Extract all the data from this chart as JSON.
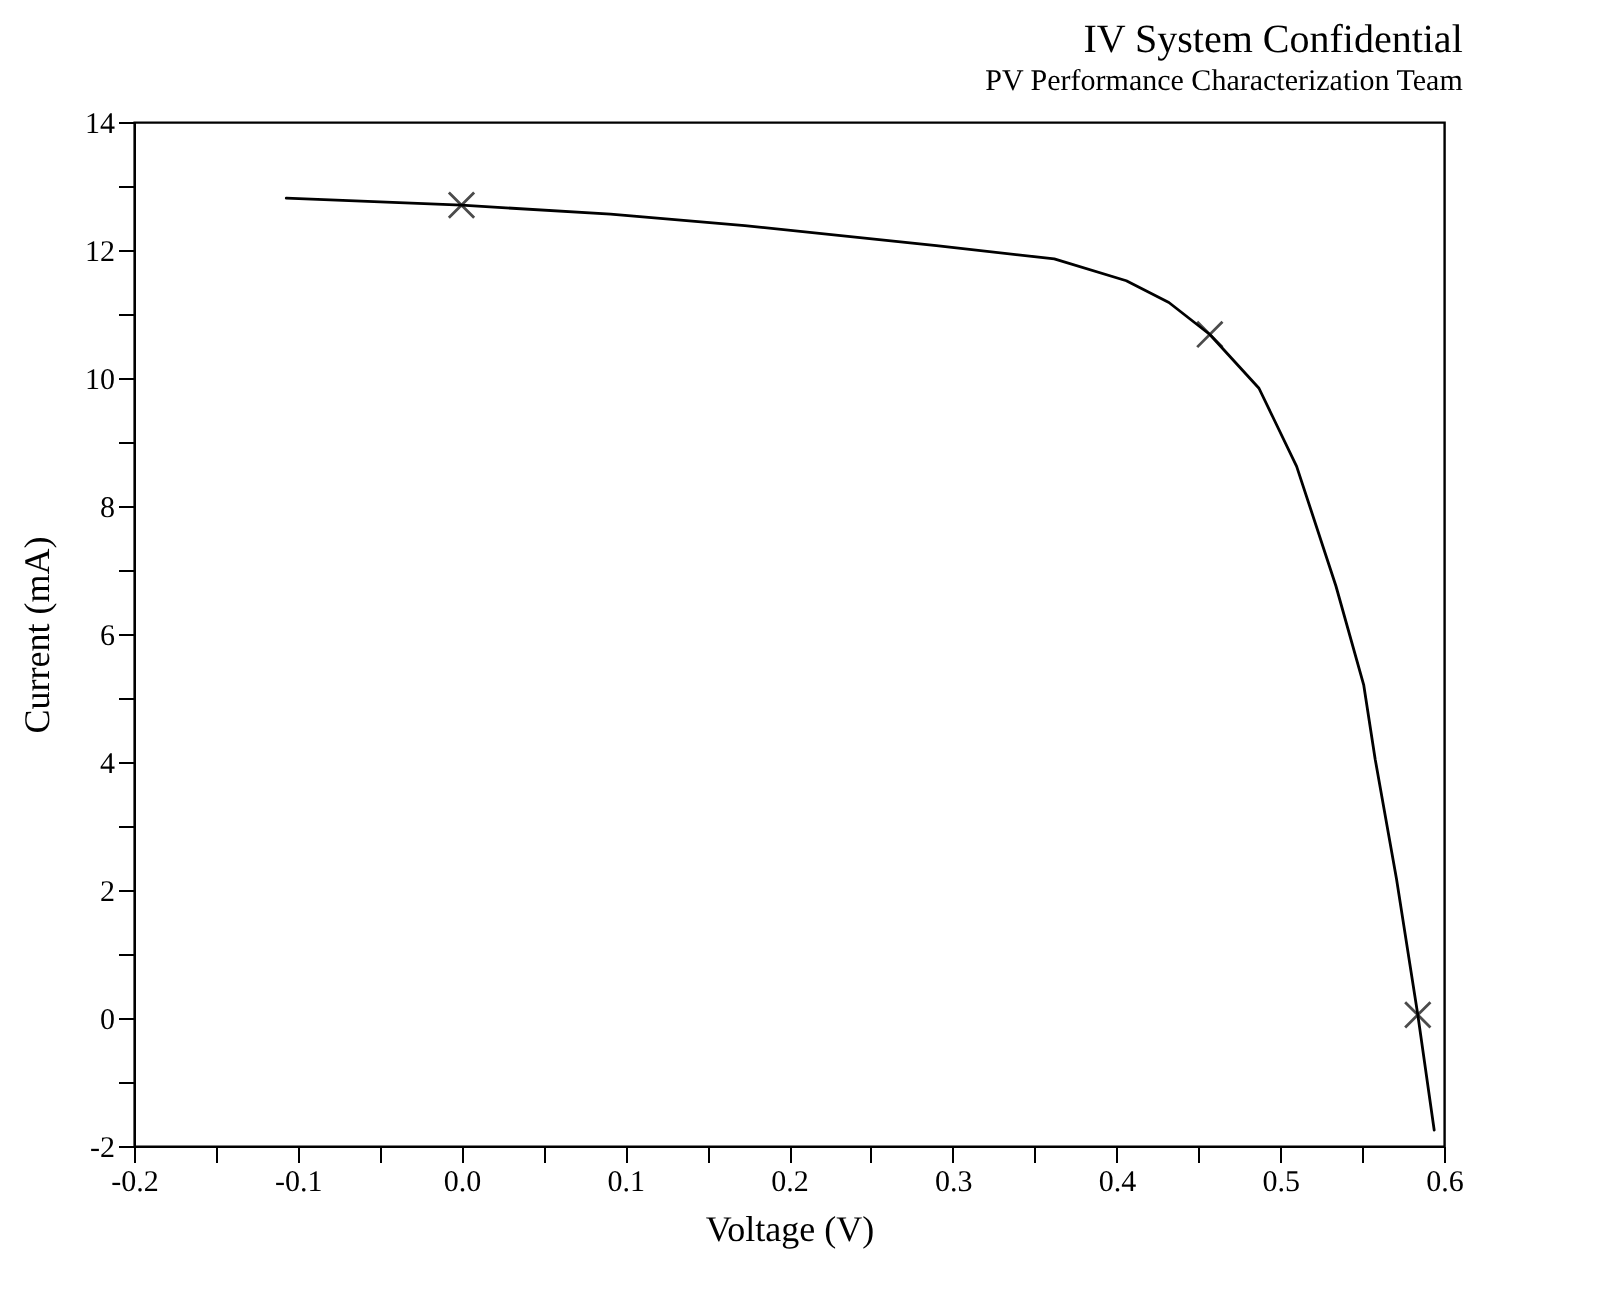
{
  "chart_data": {
    "type": "line",
    "title": "IV System   Confidential",
    "subtitle": "PV Performance Characterization Team",
    "xlabel": "Voltage (V)",
    "ylabel": "Current (mA)",
    "xlim": [
      -0.2,
      0.6
    ],
    "xticks": [
      {
        "value": -0.2,
        "label": "-0.2"
      },
      {
        "value": -0.15,
        "label": null
      },
      {
        "value": -0.1,
        "label": "-0.1"
      },
      {
        "value": -0.05,
        "label": null
      },
      {
        "value": 0,
        "label": "0.0"
      },
      {
        "value": 0.05,
        "label": null
      },
      {
        "value": 0.1,
        "label": "0.1"
      },
      {
        "value": 0.15,
        "label": null
      },
      {
        "value": 0.2,
        "label": "0.2"
      },
      {
        "value": 0.25,
        "label": null
      },
      {
        "value": 0.3,
        "label": "0.3"
      },
      {
        "value": 0.35,
        "label": null
      },
      {
        "value": 0.4,
        "label": "0.4"
      },
      {
        "value": 0.45,
        "label": null
      },
      {
        "value": 0.5,
        "label": "0.5"
      },
      {
        "value": 0.55,
        "label": null
      },
      {
        "value": 0.6,
        "label": "0.6"
      }
    ],
    "ylim": [
      -2,
      14
    ],
    "yticks": [
      -2,
      {
        "value": -1,
        "label": null
      },
      0,
      {
        "value": 1,
        "label": null
      },
      2,
      {
        "value": 3,
        "label": null
      },
      4,
      {
        "value": 5,
        "label": null
      },
      6,
      {
        "value": 7,
        "label": null
      },
      8,
      {
        "value": 9,
        "label": null
      },
      10,
      {
        "value": 11,
        "label": null
      },
      12,
      {
        "value": 13,
        "label": null
      },
      14
    ],
    "grid": false,
    "series": [
      {
        "type": "line",
        "color": "#000000",
        "marker": "none",
        "x": [
          -0.107,
          0.0,
          0.091,
          0.173,
          0.29,
          0.362,
          0.406,
          0.432,
          0.457,
          0.487,
          0.51,
          0.534,
          0.551,
          0.558,
          0.571,
          0.584,
          0.594
        ],
        "values": [
          12.81,
          12.7,
          12.56,
          12.38,
          12.07,
          11.86,
          11.52,
          11.18,
          10.68,
          9.84,
          8.62,
          6.75,
          5.2,
          4.04,
          2.17,
          0.05,
          -1.75
        ]
      },
      {
        "type": "scatter",
        "color": "#000000",
        "marker": "cross",
        "x": [
          0.0,
          0.457,
          0.584
        ],
        "values": [
          12.7,
          10.68,
          0.05
        ]
      }
    ]
  }
}
